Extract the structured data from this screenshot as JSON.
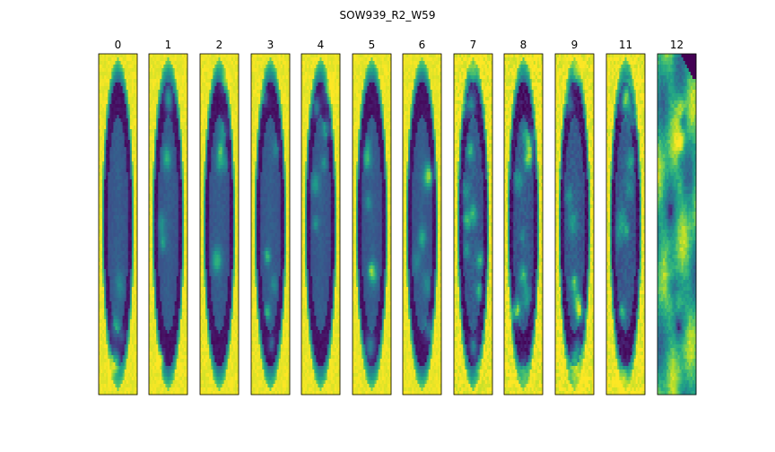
{
  "figure": {
    "title": "SOW939_R2_W59",
    "colormap": "viridis",
    "panels": [
      {
        "label": "0",
        "style": "ellipse",
        "seed": 3
      },
      {
        "label": "1",
        "style": "ellipse",
        "seed": 7
      },
      {
        "label": "2",
        "style": "ellipse",
        "seed": 11
      },
      {
        "label": "3",
        "style": "ellipse",
        "seed": 13
      },
      {
        "label": "4",
        "style": "ellipse",
        "seed": 17
      },
      {
        "label": "5",
        "style": "ellipse",
        "seed": 19
      },
      {
        "label": "6",
        "style": "ellipse",
        "seed": 23
      },
      {
        "label": "7",
        "style": "ellipse-noisy",
        "seed": 29
      },
      {
        "label": "8",
        "style": "ellipse-noisy",
        "seed": 31
      },
      {
        "label": "9",
        "style": "ellipse-noisy",
        "seed": 37
      },
      {
        "label": "11",
        "style": "ellipse-noisy",
        "seed": 41
      },
      {
        "label": "12",
        "style": "texture",
        "seed": 43
      }
    ]
  }
}
